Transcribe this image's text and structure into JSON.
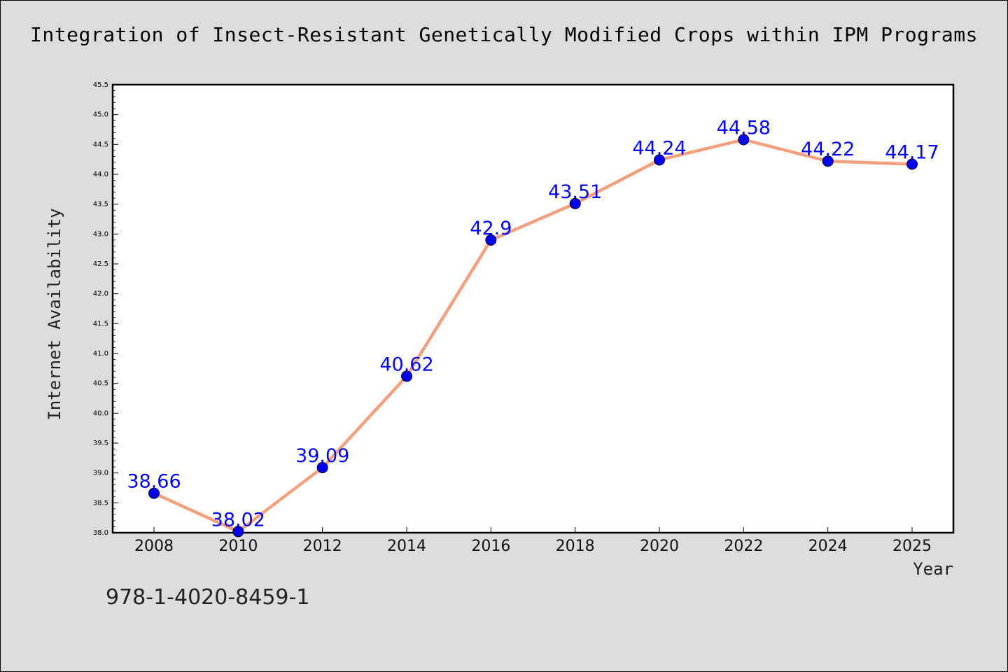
{
  "chart_data": {
    "type": "line",
    "title": "Integration of Insect-Resistant Genetically Modified Crops within IPM Programs",
    "xlabel": "Year",
    "ylabel": "Internet Availability",
    "categories": [
      "2008",
      "2010",
      "2012",
      "2014",
      "2016",
      "2018",
      "2020",
      "2022",
      "2024",
      "2025"
    ],
    "series": [
      {
        "values": [
          38.66,
          38.02,
          39.09,
          40.62,
          42.9,
          43.51,
          44.24,
          44.58,
          44.22,
          44.17
        ],
        "labels": [
          "38.66",
          "38.02",
          "39.09",
          "40.62",
          "42.9",
          "43.51",
          "44.24",
          "44.58",
          "44.22",
          "44.17"
        ]
      }
    ],
    "ylim": [
      38.0,
      45.5
    ],
    "yticks": [
      "38.0",
      "38.5",
      "39.0",
      "39.5",
      "40.0",
      "40.5",
      "41.0",
      "41.5",
      "42.0",
      "42.5",
      "43.0",
      "43.5",
      "44.0",
      "44.5",
      "45.0",
      "45.5"
    ],
    "grid": false,
    "colors": {
      "line": "#f4a07e",
      "marker": "#0000ee",
      "label": "#0000ff"
    }
  },
  "footer": {
    "isbn": "978-1-4020-8459-1"
  }
}
